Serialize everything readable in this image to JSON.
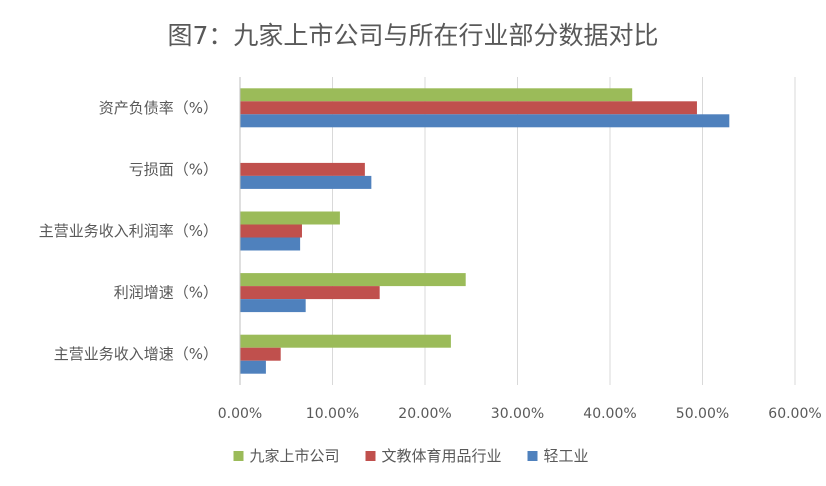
{
  "chart_data": {
    "type": "bar",
    "orientation": "horizontal",
    "title": "图7：九家上市公司与所在行业部分数据对比",
    "xlabel": "",
    "ylabel": "",
    "categories": [
      "资产负债率（%）",
      "亏损面（%）",
      "主营业务收入利润率（%）",
      "利润增速（%）",
      "主营业务收入增速（%）"
    ],
    "series": [
      {
        "name": "九家上市公司",
        "color": "#9BBB59",
        "values": [
          42.4,
          null,
          10.8,
          24.4,
          22.8
        ]
      },
      {
        "name": "文教体育用品行业",
        "color": "#C0504D",
        "values": [
          49.4,
          13.5,
          6.7,
          15.1,
          4.4
        ]
      },
      {
        "name": "轻工业",
        "color": "#4F81BD",
        "values": [
          52.9,
          14.2,
          6.5,
          7.1,
          2.8
        ]
      }
    ],
    "xlim": [
      0,
      60
    ],
    "ticks": [
      0,
      10,
      20,
      30,
      40,
      50,
      60
    ],
    "tick_labels": [
      "0.00%",
      "10.00%",
      "20.00%",
      "30.00%",
      "40.00%",
      "50.00%",
      "60.00%"
    ],
    "grid": true,
    "legend_position": "bottom"
  }
}
